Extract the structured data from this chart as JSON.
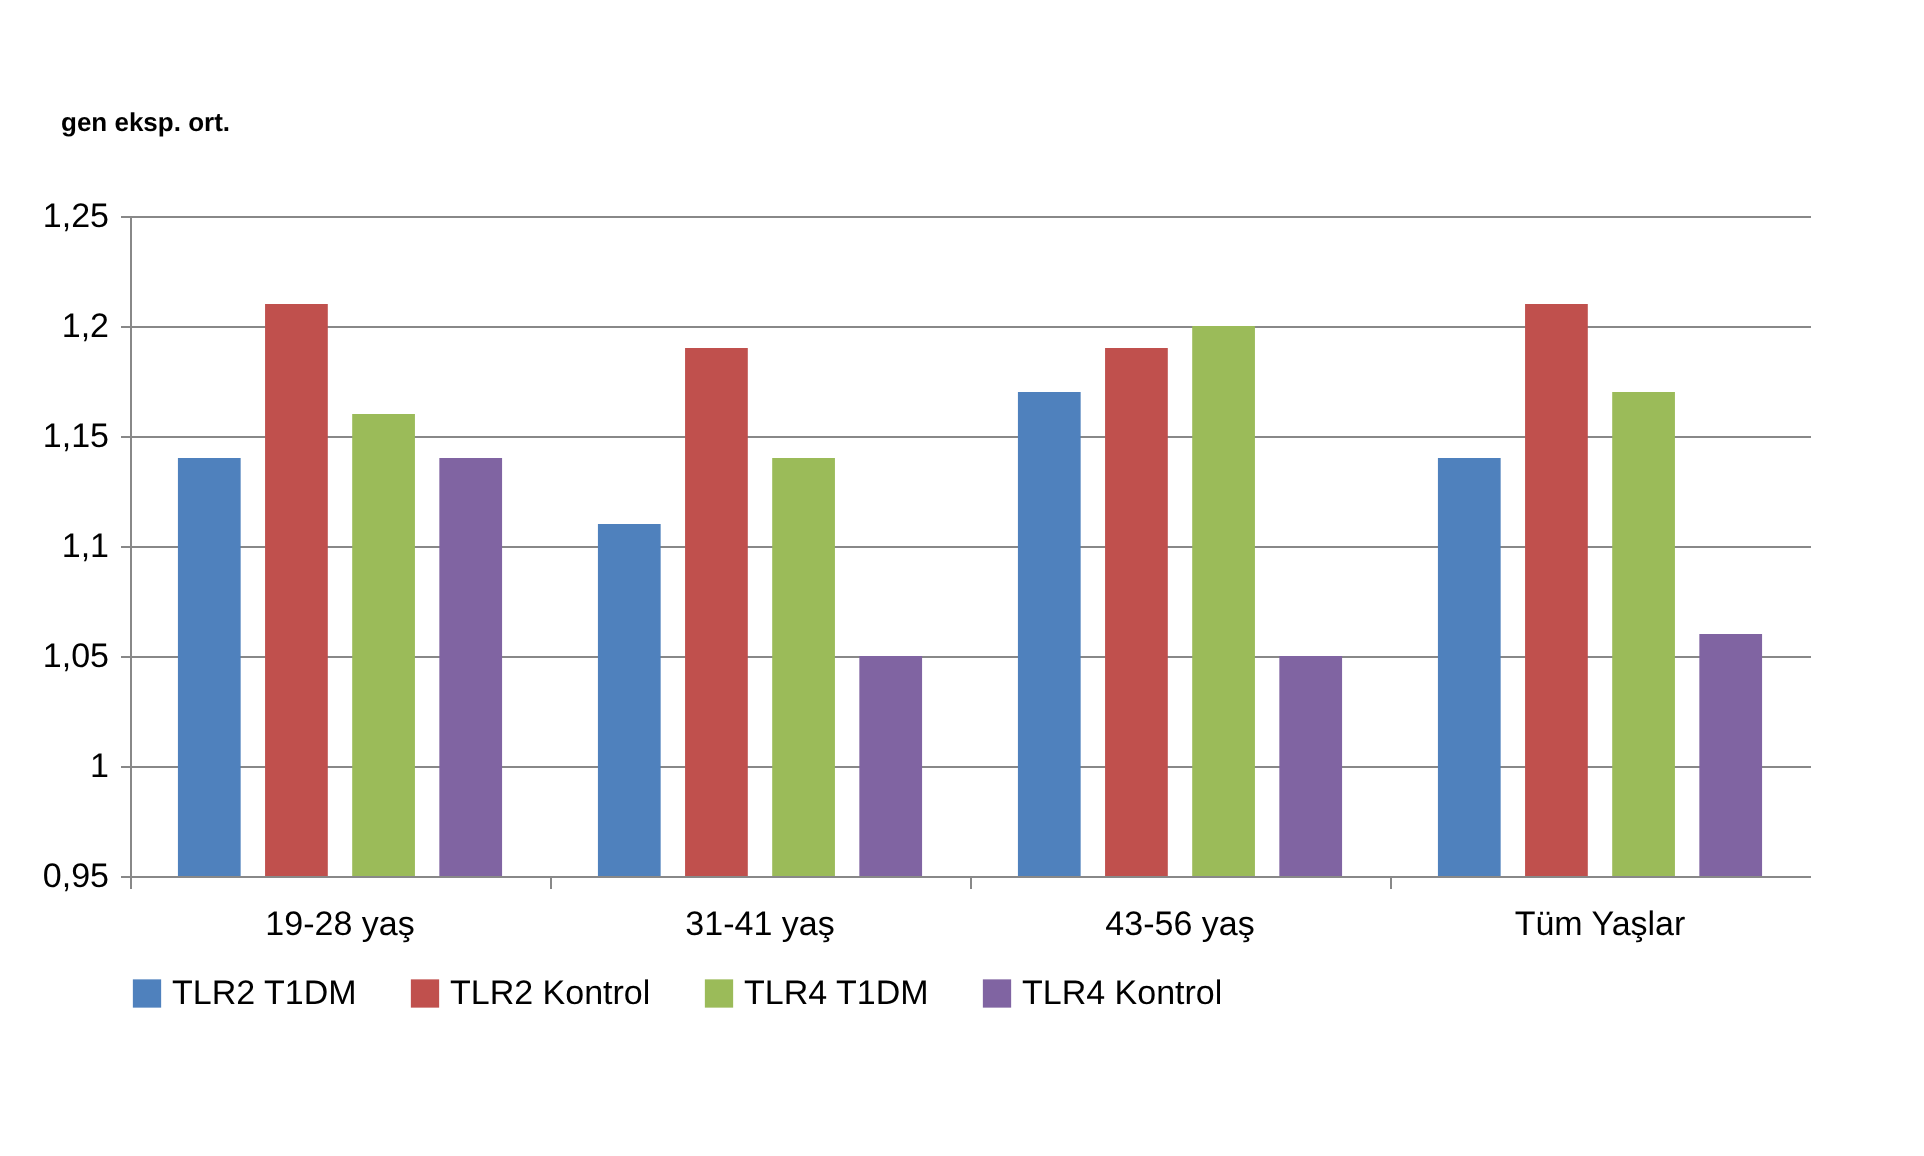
{
  "chart_data": {
    "type": "bar",
    "ylabel": "gen eksp. ort.",
    "categories": [
      "19-28 yaş",
      "31-41 yaş",
      "43-56 yaş",
      "Tüm Yaşlar"
    ],
    "series": [
      {
        "name": "TLR2 T1DM",
        "color": "#4f81bd",
        "values": [
          1.14,
          1.11,
          1.17,
          1.14
        ]
      },
      {
        "name": "TLR2 Kontrol",
        "color": "#c0504d",
        "values": [
          1.21,
          1.19,
          1.19,
          1.21
        ]
      },
      {
        "name": "TLR4 T1DM",
        "color": "#9bbb59",
        "values": [
          1.16,
          1.14,
          1.2,
          1.17
        ]
      },
      {
        "name": "TLR4 Kontrol",
        "color": "#8064a2",
        "values": [
          1.14,
          1.05,
          1.05,
          1.06
        ]
      }
    ],
    "ylim": [
      0.95,
      1.25
    ],
    "yticks": [
      {
        "value": 0.95,
        "label": "0,95"
      },
      1,
      {
        "value": 1.05,
        "label": "1,05"
      },
      {
        "value": 1.1,
        "label": "1,1"
      },
      {
        "value": 1.15,
        "label": "1,15"
      },
      {
        "value": 1.2,
        "label": "1,2"
      },
      {
        "value": 1.25,
        "label": "1,25"
      }
    ],
    "grid": "y",
    "legend": "bottom"
  }
}
